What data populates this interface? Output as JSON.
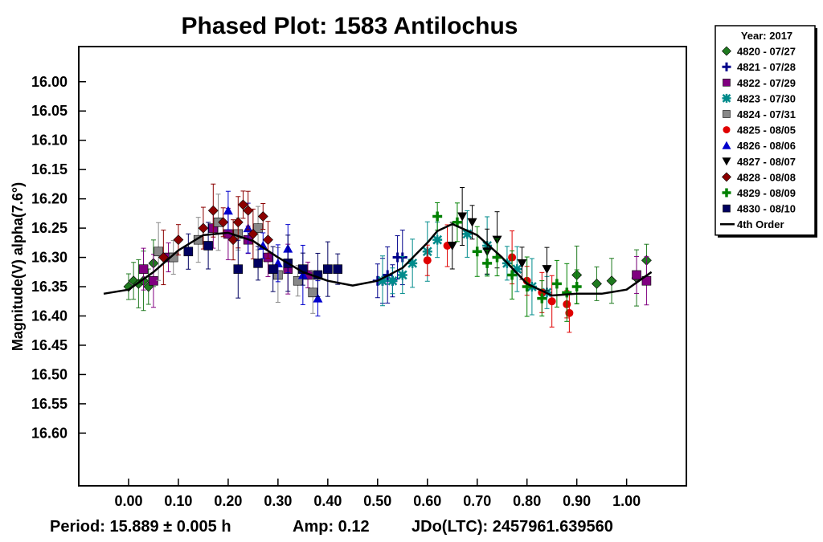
{
  "chart_data": {
    "type": "scatter",
    "title": "Phased Plot: 1583 Antilochus",
    "xlabel": "",
    "ylabel": "Magnitude(V) alpha(7.6°)",
    "xlim": [
      -0.1,
      1.12
    ],
    "ylim": [
      16.69,
      15.94
    ],
    "y_inverted": true,
    "x_ticks": [
      "0.00",
      "0.10",
      "0.20",
      "0.30",
      "0.40",
      "0.50",
      "0.60",
      "0.70",
      "0.80",
      "0.90",
      "1.00"
    ],
    "y_ticks": [
      "16.00",
      "16.05",
      "16.10",
      "16.15",
      "16.20",
      "16.25",
      "16.30",
      "16.35",
      "16.40",
      "16.45",
      "16.50",
      "16.55",
      "16.60"
    ],
    "grid": false,
    "legend_position": "outside-top-right",
    "legend_title": "Year: 2017",
    "footer": {
      "period": "Period: 15.889 ± 0.005 h",
      "amp": "Amp: 0.12",
      "jdo": "JDo(LTC): 2457961.639560"
    },
    "fit": {
      "name": "4th Order",
      "color": "#000000",
      "x": [
        -0.05,
        0.0,
        0.05,
        0.1,
        0.15,
        0.2,
        0.25,
        0.3,
        0.35,
        0.4,
        0.45,
        0.5,
        0.55,
        0.6,
        0.62,
        0.65,
        0.7,
        0.75,
        0.8,
        0.85,
        0.9,
        0.95,
        1.0,
        1.05
      ],
      "y": [
        16.362,
        16.355,
        16.325,
        16.288,
        16.262,
        16.258,
        16.272,
        16.3,
        16.325,
        16.34,
        16.348,
        16.34,
        16.318,
        16.275,
        16.255,
        16.243,
        16.262,
        16.3,
        16.345,
        16.365,
        16.362,
        16.362,
        16.355,
        16.325
      ]
    },
    "series": [
      {
        "name": "4820 - 07/27",
        "marker": "diamond",
        "color": "#1f7a1f",
        "x": [
          0.0,
          0.01,
          0.02,
          0.03,
          0.04,
          0.05,
          0.9,
          0.94,
          0.97,
          1.02,
          1.04
        ],
        "y": [
          16.35,
          16.34,
          16.345,
          16.34,
          16.35,
          16.31,
          16.33,
          16.345,
          16.34,
          16.335,
          16.305
        ]
      },
      {
        "name": "4821 - 07/28",
        "marker": "plus",
        "color": "#00008b",
        "x": [
          0.5,
          0.51,
          0.52,
          0.53,
          0.54,
          0.55
        ],
        "y": [
          16.34,
          16.34,
          16.33,
          16.34,
          16.3,
          16.3
        ]
      },
      {
        "name": "4822 - 07/29",
        "marker": "square",
        "color": "#800080",
        "x": [
          0.03,
          0.05,
          0.08,
          0.17,
          0.2,
          0.24,
          0.28,
          0.32,
          0.36,
          1.02,
          1.04
        ],
        "y": [
          16.32,
          16.34,
          16.3,
          16.25,
          16.26,
          16.27,
          16.3,
          16.32,
          16.33,
          16.33,
          16.34
        ]
      },
      {
        "name": "4823 - 07/30",
        "marker": "asterisk",
        "color": "#008b8b",
        "x": [
          0.51,
          0.53,
          0.55,
          0.57,
          0.6,
          0.62,
          0.68,
          0.72,
          0.76,
          0.78,
          0.81,
          0.84
        ],
        "y": [
          16.34,
          16.34,
          16.33,
          16.31,
          16.29,
          16.27,
          16.26,
          16.28,
          16.31,
          16.32,
          16.35,
          16.36
        ]
      },
      {
        "name": "4824 - 07/31",
        "marker": "square",
        "color": "#888888",
        "x": [
          0.06,
          0.09,
          0.14,
          0.18,
          0.22,
          0.26,
          0.3,
          0.34,
          0.37
        ],
        "y": [
          16.29,
          16.3,
          16.27,
          16.24,
          16.26,
          16.25,
          16.33,
          16.34,
          16.36
        ]
      },
      {
        "name": "4825 - 08/05",
        "marker": "circle",
        "color": "#e00000",
        "x": [
          0.6,
          0.64,
          0.77,
          0.8,
          0.83,
          0.85,
          0.88,
          0.885
        ],
        "y": [
          16.305,
          16.28,
          16.3,
          16.34,
          16.36,
          16.375,
          16.38,
          16.395
        ]
      },
      {
        "name": "4826 - 08/06",
        "marker": "triangle",
        "color": "#0000cc",
        "x": [
          0.2,
          0.24,
          0.27,
          0.3,
          0.32,
          0.35,
          0.38
        ],
        "y": [
          16.22,
          16.25,
          16.28,
          16.31,
          16.285,
          16.33,
          16.37
        ]
      },
      {
        "name": "4827 - 08/07",
        "marker": "triangle-down",
        "color": "#000000",
        "x": [
          0.65,
          0.67,
          0.69,
          0.72,
          0.74,
          0.79,
          0.84
        ],
        "y": [
          16.28,
          16.23,
          16.24,
          16.29,
          16.27,
          16.31,
          16.32
        ]
      },
      {
        "name": "4828 - 08/08",
        "marker": "diamond",
        "color": "#8b0000",
        "x": [
          0.07,
          0.1,
          0.15,
          0.17,
          0.19,
          0.21,
          0.22,
          0.23,
          0.24,
          0.25,
          0.27,
          0.28
        ],
        "y": [
          16.3,
          16.27,
          16.25,
          16.22,
          16.24,
          16.27,
          16.24,
          16.21,
          16.22,
          16.26,
          16.23,
          16.27
        ]
      },
      {
        "name": "4829 - 08/09",
        "marker": "cross",
        "color": "#008000",
        "x": [
          0.62,
          0.66,
          0.7,
          0.72,
          0.74,
          0.77,
          0.8,
          0.83,
          0.86,
          0.88,
          0.9
        ],
        "y": [
          16.23,
          16.24,
          16.29,
          16.31,
          16.3,
          16.33,
          16.35,
          16.37,
          16.345,
          16.36,
          16.35
        ]
      },
      {
        "name": "4830 - 08/10",
        "marker": "square",
        "color": "#000060",
        "x": [
          0.12,
          0.16,
          0.22,
          0.26,
          0.29,
          0.32,
          0.35,
          0.38,
          0.4,
          0.42
        ],
        "y": [
          16.29,
          16.28,
          16.32,
          16.31,
          16.32,
          16.31,
          16.32,
          16.33,
          16.32,
          16.32
        ]
      }
    ]
  }
}
